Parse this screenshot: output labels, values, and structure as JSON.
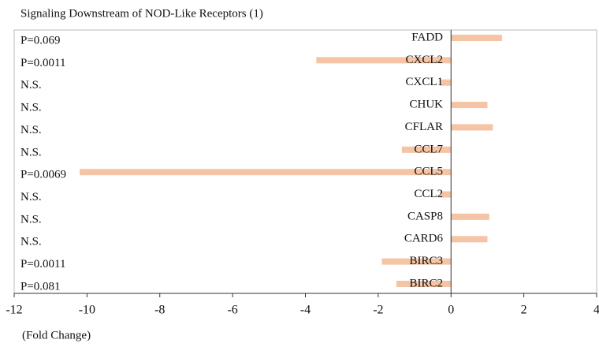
{
  "chart_data": {
    "type": "barh",
    "title": "Signaling Downstream of NOD-Like Receptors (1)",
    "xlabel": "(Fold Change)",
    "categories": [
      "FADD",
      "CXCL2",
      "CXCL1",
      "CHUK",
      "CFLAR",
      "CCL7",
      "CCL5",
      "CCL2",
      "CASP8",
      "CARD6",
      "BIRC3",
      "BIRC2"
    ],
    "values": [
      1.4,
      -3.7,
      -0.3,
      1.0,
      1.15,
      -1.35,
      -10.2,
      -0.3,
      1.05,
      1.0,
      -1.9,
      -1.5
    ],
    "annotations": [
      "P=0.069",
      "P=0.0011",
      "N.S.",
      "N.S.",
      "N.S.",
      "N.S.",
      "P=0.0069",
      "N.S.",
      "N.S.",
      "N.S.",
      "P=0.0011",
      "P=0.081"
    ],
    "color": "#f5c4a4",
    "xlim": [
      -12,
      4
    ],
    "xticks": [
      -12,
      -10,
      -8,
      -6,
      -4,
      -2,
      0,
      2,
      4
    ]
  }
}
